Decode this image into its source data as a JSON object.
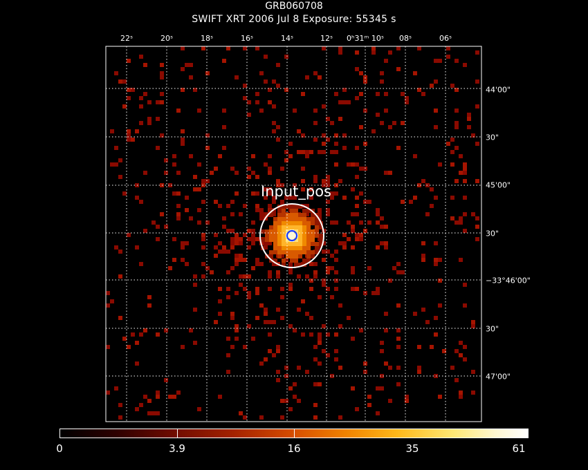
{
  "title": "GRB060708",
  "subtitle": "SWIFT XRT   2006 Jul  8     Exposure: 55345 s",
  "source_label": "Input_pos",
  "ra_ticks": [
    "22ˢ",
    "20ˢ",
    "18ˢ",
    "16ˢ",
    "14ˢ",
    "12ˢ",
    "0ʰ31ᵐ 10ˢ",
    "08ˢ",
    "06ˢ"
  ],
  "dec_ticks": [
    "44'00\"",
    "30\"",
    "45'00\"",
    "30\"",
    "−33°46'00\"",
    "30\"",
    "47'00\""
  ],
  "colorbar": {
    "labels": [
      "0",
      "3.9",
      "16",
      "35",
      "61"
    ]
  },
  "colors": {
    "background": "#000000",
    "grid": "#ffffff",
    "circle_outer": "#ffffff",
    "circle_inner": "#0a2aff",
    "counts": "#8a0a00"
  }
}
